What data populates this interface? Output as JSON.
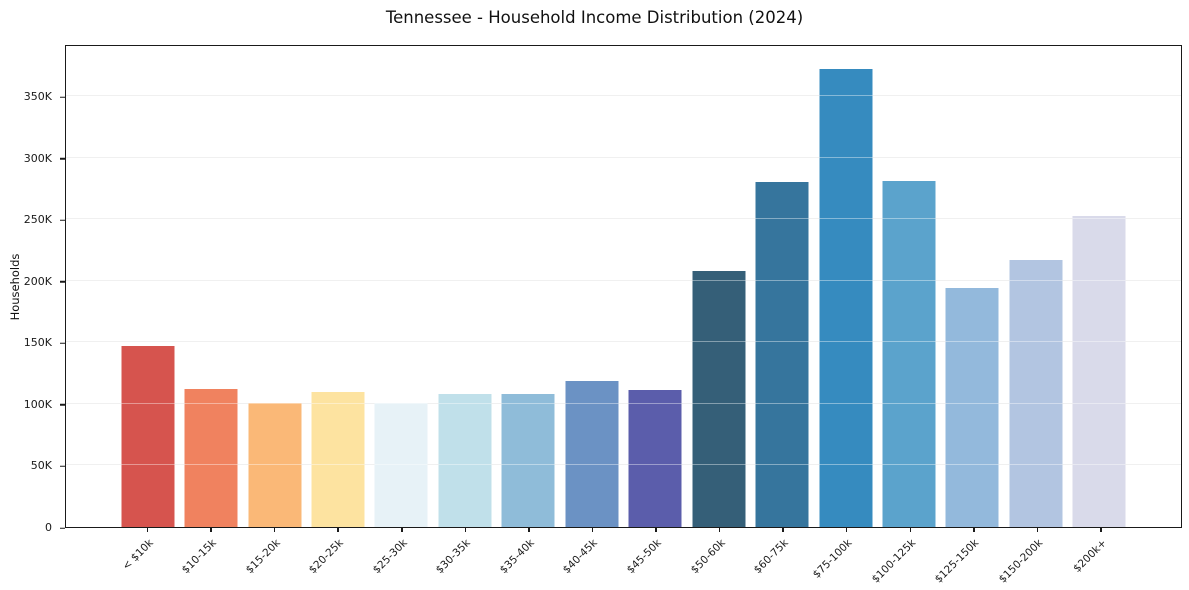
{
  "chart_data": {
    "type": "bar",
    "title": "Tennessee - Household Income Distribution (2024)",
    "xlabel": "",
    "ylabel": "Households",
    "categories": [
      "< $10k",
      "$10-15k",
      "$15-20k",
      "$20-25k",
      "$25-30k",
      "$30-35k",
      "$35-40k",
      "$40-45k",
      "$45-50k",
      "$50-60k",
      "$60-75k",
      "$75-100k",
      "$100-125k",
      "$125-150k",
      "$150-200k",
      "$200k+"
    ],
    "values": [
      147000,
      112000,
      101000,
      110000,
      101000,
      108000,
      108000,
      119000,
      111000,
      208000,
      280000,
      372000,
      281000,
      194000,
      217000,
      253000
    ],
    "bar_colors": [
      "#d6544e",
      "#f0825f",
      "#fab877",
      "#fde3a0",
      "#e7f2f7",
      "#c0e0ea",
      "#8fbcd9",
      "#6b92c4",
      "#5b5dab",
      "#355f78",
      "#36759d",
      "#368bbf",
      "#5ba3cc",
      "#93b9dc",
      "#b2c5e1",
      "#d9daea"
    ],
    "ytick_labels": [
      "0",
      "50K",
      "100K",
      "150K",
      "200K",
      "250K",
      "300K",
      "350K"
    ],
    "ytick_values": [
      0,
      50000,
      100000,
      150000,
      200000,
      250000,
      300000,
      350000
    ],
    "ylim": [
      0,
      390000
    ],
    "grid": true,
    "legend_position": "none"
  }
}
